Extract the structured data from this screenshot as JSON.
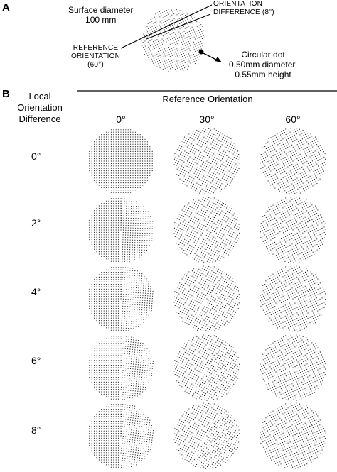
{
  "panel_a": {
    "letter": "A",
    "surface_label": [
      "Surface diameter",
      "100 mm"
    ],
    "orientation_diff_label": [
      "ORIENTATION",
      "DIFFERENCE (8°)"
    ],
    "reference_label": [
      "REFERENCE",
      "ORIENTATION",
      "(60°)"
    ],
    "dot_label": [
      "Circular dot",
      "0.50mm diameter,",
      "0.55mm height"
    ],
    "example": {
      "reference_deg": 60,
      "difference_deg": 8
    }
  },
  "panel_b": {
    "letter": "B",
    "row_header": [
      "Local",
      "Orientation",
      "Difference"
    ],
    "column_header": "Reference Orientation",
    "columns": [
      "0°",
      "30°",
      "60°"
    ],
    "rows": [
      "0°",
      "2°",
      "4°",
      "6°",
      "8°"
    ],
    "reference_values": [
      0,
      30,
      60
    ],
    "difference_values": [
      0,
      2,
      4,
      6,
      8
    ]
  },
  "colors": {
    "ink": "#000000",
    "dot": "#222222",
    "background": "#ffffff"
  }
}
